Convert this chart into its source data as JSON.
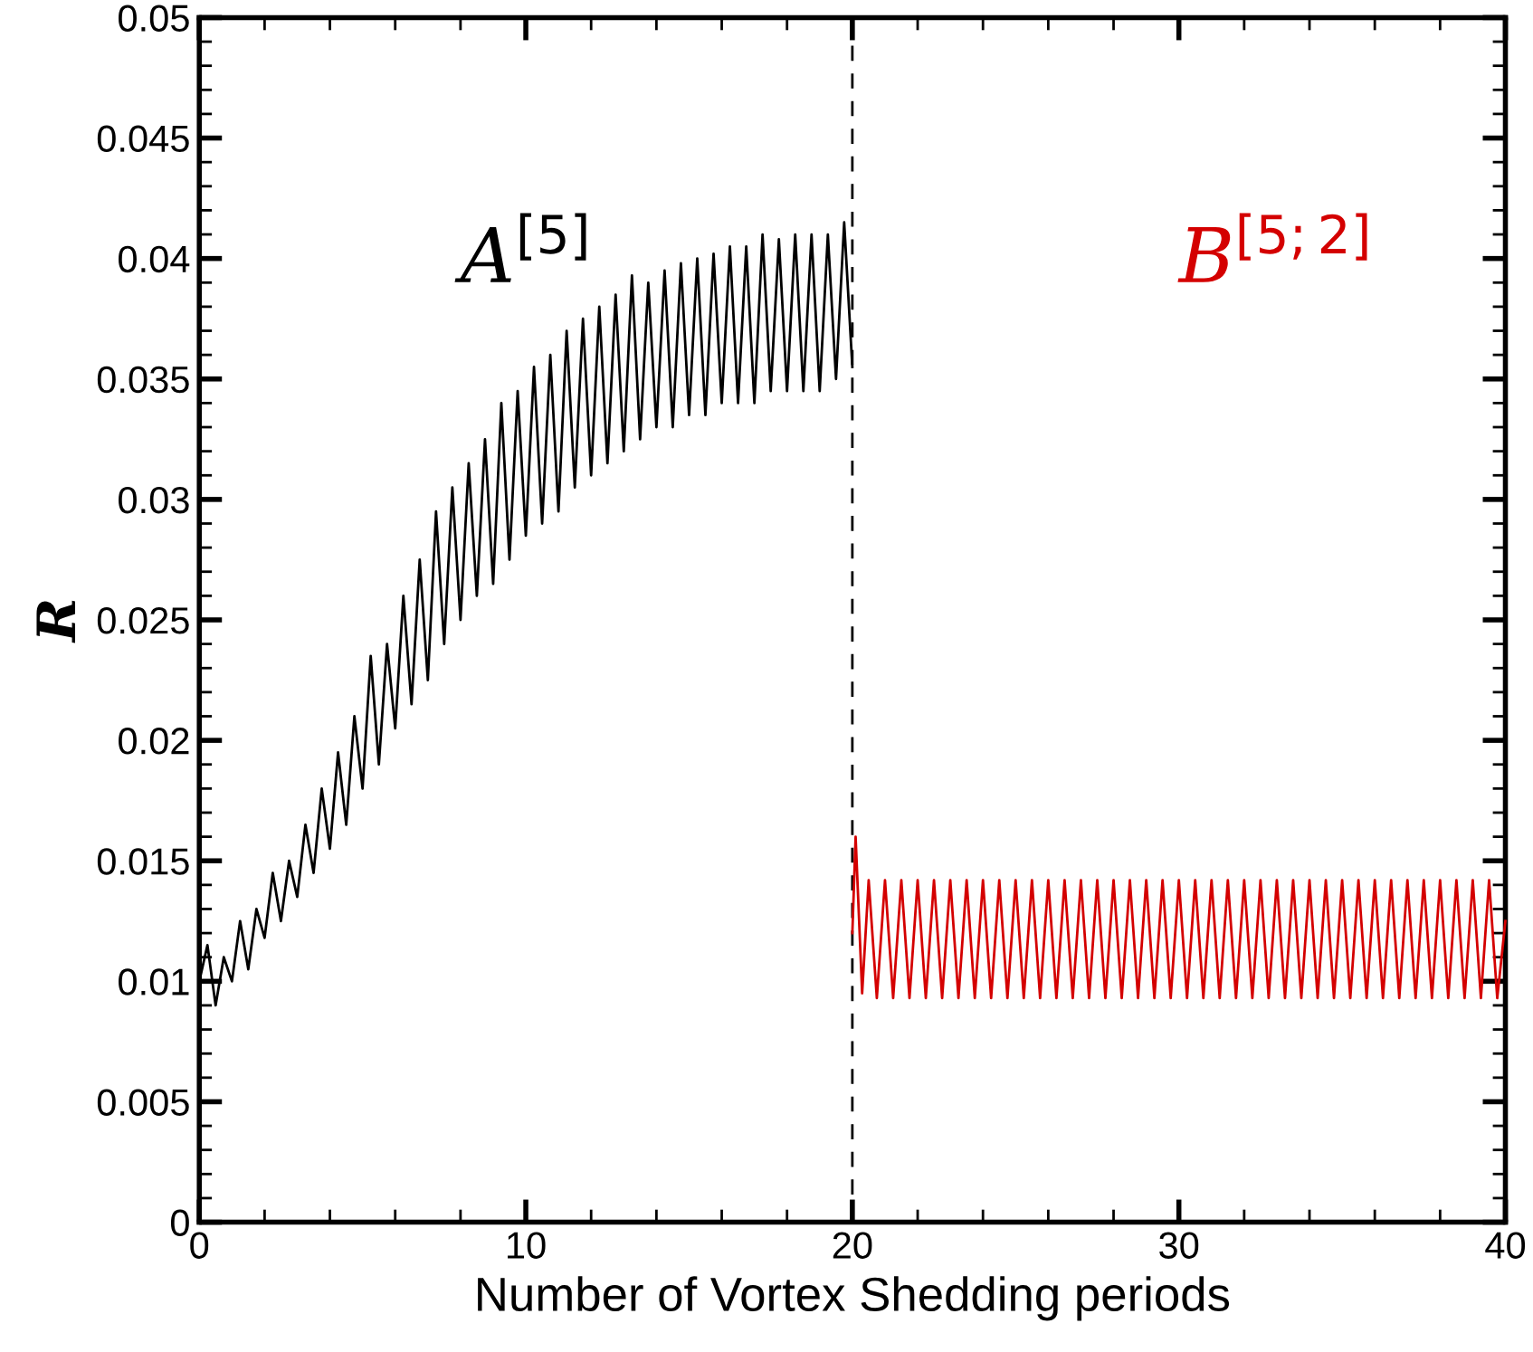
{
  "chart_data": {
    "type": "line",
    "xlabel": "Number of Vortex Shedding periods",
    "ylabel": "R",
    "xlim": [
      0,
      40
    ],
    "ylim": [
      0,
      0.05
    ],
    "xticks": [
      0,
      10,
      20,
      30,
      40
    ],
    "yticks": [
      0,
      0.005,
      0.01,
      0.015,
      0.02,
      0.025,
      0.03,
      0.035,
      0.04,
      0.045,
      0.05
    ],
    "grid": false,
    "legend": false,
    "marker": "none",
    "line_style": "solid",
    "annotations": [
      "A$^{[5]}$",
      "B$^{[5;2]}$"
    ],
    "ref_lines": [
      {
        "axis": "x",
        "value": 20,
        "color": "#000000",
        "line_style": "dashed"
      }
    ],
    "series": [
      {
        "color": "#000000",
        "x": [
          0,
          0.25,
          0.5,
          0.75,
          1,
          1.25,
          1.5,
          1.75,
          2,
          2.25,
          2.5,
          2.75,
          3,
          3.25,
          3.5,
          3.75,
          4,
          4.25,
          4.5,
          4.75,
          5,
          5.25,
          5.5,
          5.75,
          6,
          6.25,
          6.5,
          6.75,
          7,
          7.25,
          7.5,
          7.75,
          8,
          8.25,
          8.5,
          8.75,
          9,
          9.25,
          9.5,
          9.75,
          10,
          10.25,
          10.5,
          10.75,
          11,
          11.25,
          11.5,
          11.75,
          12,
          12.25,
          12.5,
          12.75,
          13,
          13.25,
          13.5,
          13.75,
          14,
          14.25,
          14.5,
          14.75,
          15,
          15.25,
          15.5,
          15.75,
          16,
          16.25,
          16.5,
          16.75,
          17,
          17.25,
          17.5,
          17.75,
          18,
          18.25,
          18.5,
          18.75,
          19,
          19.25,
          19.5,
          19.75,
          20
        ],
        "values": [
          0.01,
          0.0115,
          0.009,
          0.011,
          0.01,
          0.0125,
          0.0105,
          0.013,
          0.0118,
          0.0145,
          0.0125,
          0.015,
          0.0135,
          0.0165,
          0.0145,
          0.018,
          0.0155,
          0.0195,
          0.0165,
          0.021,
          0.018,
          0.0235,
          0.019,
          0.024,
          0.0205,
          0.026,
          0.0215,
          0.0275,
          0.0225,
          0.0295,
          0.024,
          0.0305,
          0.025,
          0.0315,
          0.026,
          0.0325,
          0.0265,
          0.034,
          0.0275,
          0.0345,
          0.0285,
          0.0355,
          0.029,
          0.036,
          0.0295,
          0.037,
          0.0305,
          0.0375,
          0.031,
          0.038,
          0.0315,
          0.0385,
          0.032,
          0.0393,
          0.0325,
          0.039,
          0.033,
          0.0395,
          0.033,
          0.0398,
          0.0335,
          0.04,
          0.0335,
          0.0402,
          0.034,
          0.0405,
          0.034,
          0.0405,
          0.034,
          0.041,
          0.0345,
          0.0408,
          0.0345,
          0.041,
          0.0345,
          0.041,
          0.0345,
          0.041,
          0.035,
          0.0415,
          0.0355
        ]
      },
      {
        "color": "#d40000",
        "x": [
          20,
          20.1,
          20.3,
          20.5,
          20.75,
          21,
          21.25,
          21.5,
          21.75,
          22,
          22.25,
          22.5,
          22.75,
          23,
          23.25,
          23.5,
          23.75,
          24,
          24.25,
          24.5,
          24.75,
          25,
          25.25,
          25.5,
          25.75,
          26,
          26.25,
          26.5,
          26.75,
          27,
          27.25,
          27.5,
          27.75,
          28,
          28.25,
          28.5,
          28.75,
          29,
          29.25,
          29.5,
          29.75,
          30,
          30.25,
          30.5,
          30.75,
          31,
          31.25,
          31.5,
          31.75,
          32,
          32.25,
          32.5,
          32.75,
          33,
          33.25,
          33.5,
          33.75,
          34,
          34.25,
          34.5,
          34.75,
          35,
          35.25,
          35.5,
          35.75,
          36,
          36.25,
          36.5,
          36.75,
          37,
          37.25,
          37.5,
          37.75,
          38,
          38.25,
          38.5,
          38.75,
          39,
          39.25,
          39.5,
          39.75,
          40
        ],
        "values": [
          0.012,
          0.016,
          0.0095,
          0.0142,
          0.0093,
          0.0142,
          0.0093,
          0.0142,
          0.0093,
          0.0142,
          0.0093,
          0.0142,
          0.0093,
          0.0142,
          0.0093,
          0.0142,
          0.0093,
          0.0142,
          0.0093,
          0.0142,
          0.0093,
          0.0142,
          0.0093,
          0.0142,
          0.0093,
          0.0142,
          0.0093,
          0.0142,
          0.0093,
          0.0142,
          0.0093,
          0.0142,
          0.0093,
          0.0142,
          0.0093,
          0.0142,
          0.0093,
          0.0142,
          0.0093,
          0.0142,
          0.0093,
          0.0142,
          0.0093,
          0.0142,
          0.0093,
          0.0142,
          0.0093,
          0.0142,
          0.0093,
          0.0142,
          0.0093,
          0.0142,
          0.0093,
          0.0142,
          0.0093,
          0.0142,
          0.0093,
          0.0142,
          0.0093,
          0.0142,
          0.0093,
          0.0142,
          0.0093,
          0.0142,
          0.0093,
          0.0142,
          0.0093,
          0.0142,
          0.0093,
          0.0142,
          0.0093,
          0.0142,
          0.0093,
          0.0142,
          0.0093,
          0.0142,
          0.0093,
          0.0142,
          0.0093,
          0.0142,
          0.0093,
          0.0125
        ]
      }
    ]
  }
}
